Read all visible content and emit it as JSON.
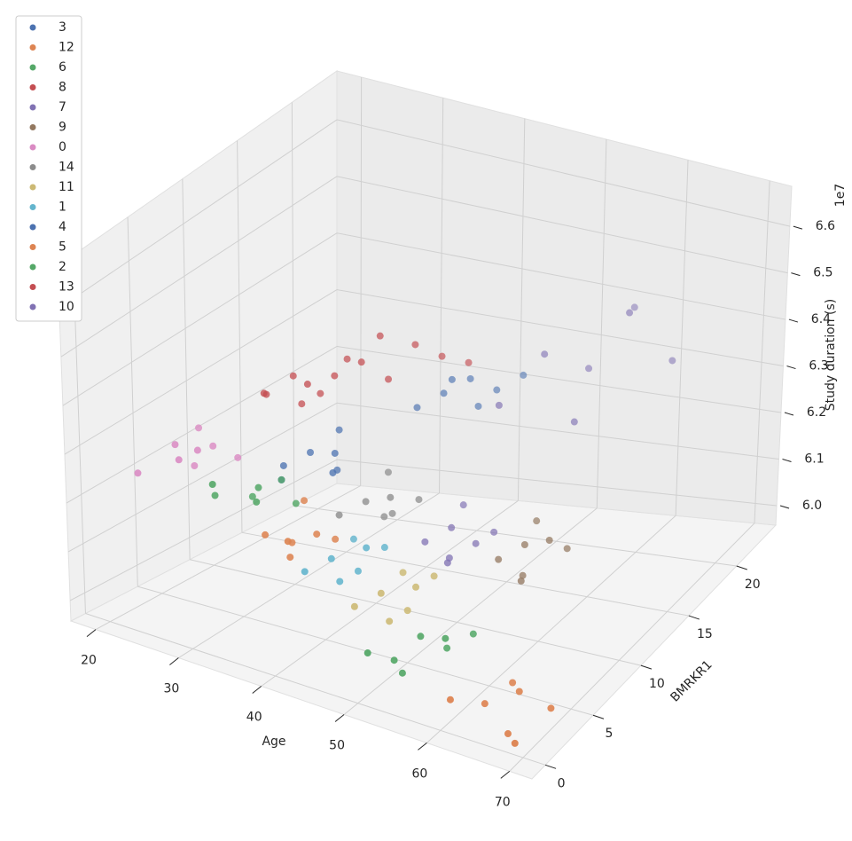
{
  "chart_data": {
    "type": "scatter3d",
    "x_label": "Age",
    "y_label": "BMRKR1",
    "z_label": "Study duration (s)",
    "z_offset_label": "1e7",
    "xlim": [
      17,
      72.7
    ],
    "ylim": [
      -1.4,
      24.1
    ],
    "zlim": [
      5.958,
      6.686
    ],
    "xticks": [
      20,
      30,
      40,
      50,
      60,
      70
    ],
    "yticks": [
      0,
      5,
      10,
      15,
      20
    ],
    "zticks": [
      {
        "value": 6,
        "label": "6.0"
      },
      6.1,
      6.2,
      6.3,
      6.4,
      6.5,
      6.6
    ],
    "grid": true,
    "legend": "upper left",
    "series": [
      {
        "name": "3",
        "color": "#4c72b0",
        "x": [
          30,
          32,
          34,
          36,
          33,
          31,
          35
        ],
        "y": [
          9,
          10,
          11,
          9,
          12,
          8,
          10
        ],
        "z": [
          6.2,
          6.22,
          6.18,
          6.21,
          6.24,
          6.19,
          6.23
        ]
      },
      {
        "name": "12",
        "color": "#dd8452",
        "x": [
          34,
          36,
          38,
          40,
          35,
          37,
          39
        ],
        "y": [
          4,
          5,
          3,
          6,
          7,
          4,
          5
        ],
        "z": [
          6.15,
          6.13,
          6.17,
          6.14,
          6.18,
          6.12,
          6.16
        ]
      },
      {
        "name": "6",
        "color": "#55a868",
        "x": [
          28,
          30,
          32,
          34,
          29,
          31,
          33
        ],
        "y": [
          4,
          6,
          5,
          7,
          3,
          8,
          4
        ],
        "z": [
          6.2,
          6.18,
          6.22,
          6.17,
          6.24,
          6.19,
          6.21
        ]
      },
      {
        "name": "8",
        "color": "#c44e52",
        "x": [
          28,
          30,
          32,
          34,
          29,
          31,
          33
        ],
        "y": [
          9,
          10,
          11,
          12,
          8,
          10,
          9
        ],
        "z": [
          6.33,
          6.36,
          6.32,
          6.38,
          6.35,
          6.31,
          6.37
        ]
      },
      {
        "name": "7",
        "color": "#8172b3",
        "x": [
          46,
          48,
          50,
          52,
          47,
          49,
          51
        ],
        "y": [
          10,
          11,
          9,
          12,
          13,
          10,
          11
        ],
        "z": [
          6.1,
          6.12,
          6.09,
          6.11,
          6.13,
          6.08,
          6.1
        ]
      },
      {
        "name": "9",
        "color": "#937860",
        "x": [
          55,
          57,
          59,
          61,
          56,
          58,
          60
        ],
        "y": [
          10,
          11,
          9,
          12,
          13,
          10,
          11
        ],
        "z": [
          6.1,
          6.12,
          6.09,
          6.11,
          6.13,
          6.08,
          6.14
        ]
      },
      {
        "name": "0",
        "color": "#da8bc3",
        "x": [
          20,
          22,
          24,
          26,
          21,
          23,
          25,
          27
        ],
        "y": [
          3,
          5,
          7,
          4,
          8,
          6,
          3,
          7
        ],
        "z": [
          6.22,
          6.26,
          6.24,
          6.28,
          6.25,
          6.21,
          6.27,
          6.23
        ]
      },
      {
        "name": "14",
        "color": "#8c8c8c",
        "x": [
          38,
          40,
          42,
          44,
          39,
          41,
          43
        ],
        "y": [
          8,
          9,
          10,
          11,
          12,
          10,
          9
        ],
        "z": [
          6.15,
          6.17,
          6.14,
          6.16,
          6.18,
          6.13,
          6.19
        ]
      },
      {
        "name": "11",
        "color": "#ccb974",
        "x": [
          46,
          48,
          50,
          52,
          47,
          49,
          51
        ],
        "y": [
          3,
          4,
          5,
          6,
          7,
          4,
          5
        ],
        "z": [
          6.08,
          6.1,
          6.06,
          6.12,
          6.09,
          6.05,
          6.11
        ]
      },
      {
        "name": "1",
        "color": "#64b5cd",
        "x": [
          40,
          42,
          44,
          46,
          41,
          43,
          45
        ],
        "y": [
          3,
          4,
          5,
          6,
          7,
          4,
          5
        ],
        "z": [
          6.12,
          6.14,
          6.11,
          6.15,
          6.13,
          6.1,
          6.16
        ]
      },
      {
        "name": "4",
        "color": "#4c72b0",
        "x": [
          40,
          42,
          44,
          46,
          48,
          43,
          45
        ],
        "y": [
          14,
          15,
          16,
          17,
          18,
          15,
          16
        ],
        "z": [
          6.28,
          6.3,
          6.32,
          6.29,
          6.31,
          6.33,
          6.27
        ]
      },
      {
        "name": "5",
        "color": "#dd8452",
        "x": [
          60,
          63,
          66,
          69,
          71,
          64,
          67
        ],
        "y": [
          1,
          2,
          3,
          0,
          2,
          4,
          1
        ],
        "z": [
          6.0,
          5.99,
          6.01,
          5.98,
          6.02,
          6.0,
          5.97
        ]
      },
      {
        "name": "2",
        "color": "#55a868",
        "x": [
          50,
          52,
          54,
          56,
          58,
          53,
          57
        ],
        "y": [
          1,
          2,
          3,
          4,
          5,
          2,
          3
        ],
        "z": [
          6.04,
          6.02,
          6.06,
          6.03,
          6.05,
          6.0,
          6.07
        ]
      },
      {
        "name": "13",
        "color": "#c44e52",
        "x": [
          35,
          37,
          39,
          41,
          43,
          45,
          38
        ],
        "y": [
          10,
          11,
          12,
          13,
          14,
          15,
          12
        ],
        "z": [
          6.38,
          6.4,
          6.36,
          6.42,
          6.39,
          6.37,
          6.44
        ]
      },
      {
        "name": "10",
        "color": "#8172b3",
        "x": [
          50,
          53,
          56,
          59,
          62,
          65,
          58
        ],
        "y": [
          14,
          16,
          18,
          20,
          17,
          19,
          15
        ],
        "z": [
          6.32,
          6.4,
          6.35,
          6.45,
          6.5,
          6.38,
          6.3
        ]
      }
    ]
  }
}
